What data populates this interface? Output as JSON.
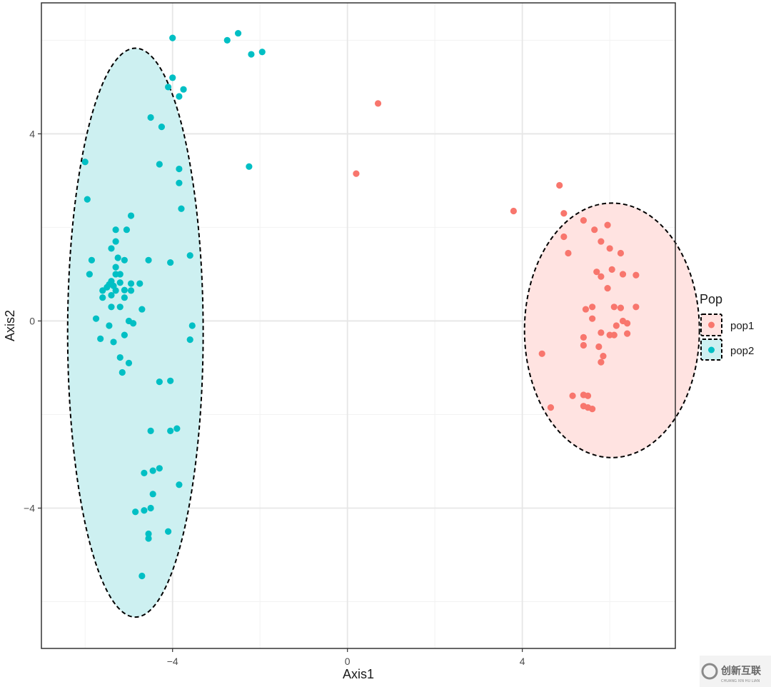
{
  "chart_data": {
    "type": "scatter",
    "xlabel": "Axis1",
    "ylabel": "Axis2",
    "xlim": [
      -7.0,
      7.5
    ],
    "ylim": [
      -7.0,
      6.8
    ],
    "x_ticks": [
      -4,
      0,
      4
    ],
    "y_ticks": [
      -4,
      0,
      4
    ],
    "x_tick_labels": [
      "−4",
      "0",
      "4"
    ],
    "y_tick_labels": [
      "−4",
      "0",
      "4"
    ],
    "grid": true,
    "legend": {
      "title": "Pop",
      "position": "right",
      "entries": [
        "pop1",
        "pop2"
      ]
    },
    "series": [
      {
        "name": "pop1",
        "color": "#F8766D",
        "fill": "#FFE3E1",
        "ellipse": {
          "cx": 6.05,
          "cy": -0.2,
          "rx": 2.0,
          "ry": 2.72
        },
        "points": [
          [
            0.7,
            4.65
          ],
          [
            0.2,
            3.15
          ],
          [
            3.8,
            2.35
          ],
          [
            4.85,
            2.9
          ],
          [
            4.95,
            2.3
          ],
          [
            5.4,
            2.15
          ],
          [
            5.65,
            1.95
          ],
          [
            5.95,
            2.05
          ],
          [
            4.95,
            1.8
          ],
          [
            5.05,
            1.45
          ],
          [
            5.8,
            1.7
          ],
          [
            6.0,
            1.55
          ],
          [
            6.25,
            1.45
          ],
          [
            6.05,
            1.1
          ],
          [
            5.7,
            1.05
          ],
          [
            5.8,
            0.95
          ],
          [
            6.3,
            1.0
          ],
          [
            6.6,
            0.98
          ],
          [
            5.95,
            0.7
          ],
          [
            5.45,
            0.25
          ],
          [
            5.6,
            0.3
          ],
          [
            6.1,
            0.3
          ],
          [
            6.25,
            0.28
          ],
          [
            6.6,
            0.3
          ],
          [
            5.6,
            0.05
          ],
          [
            6.3,
            0.0
          ],
          [
            6.4,
            -0.05
          ],
          [
            6.15,
            -0.1
          ],
          [
            5.8,
            -0.25
          ],
          [
            6.0,
            -0.3
          ],
          [
            6.1,
            -0.3
          ],
          [
            6.4,
            -0.27
          ],
          [
            5.4,
            -0.35
          ],
          [
            5.4,
            -0.52
          ],
          [
            5.75,
            -0.55
          ],
          [
            4.45,
            -0.7
          ],
          [
            5.85,
            -0.75
          ],
          [
            5.8,
            -0.88
          ],
          [
            5.15,
            -1.6
          ],
          [
            5.4,
            -1.58
          ],
          [
            5.5,
            -1.6
          ],
          [
            4.65,
            -1.85
          ],
          [
            5.4,
            -1.82
          ],
          [
            5.5,
            -1.85
          ],
          [
            5.6,
            -1.88
          ]
        ]
      },
      {
        "name": "pop2",
        "color": "#00BFC4",
        "fill": "#CDF0F1",
        "ellipse": {
          "cx": -4.85,
          "cy": -0.25,
          "rx": 1.55,
          "ry": 6.08
        },
        "points": [
          [
            -4.0,
            6.05
          ],
          [
            -2.5,
            6.15
          ],
          [
            -2.75,
            6.0
          ],
          [
            -2.2,
            5.7
          ],
          [
            -1.95,
            5.75
          ],
          [
            -4.0,
            5.2
          ],
          [
            -4.1,
            5.0
          ],
          [
            -3.75,
            4.95
          ],
          [
            -3.85,
            4.8
          ],
          [
            -4.5,
            4.35
          ],
          [
            -4.25,
            4.15
          ],
          [
            -2.25,
            3.3
          ],
          [
            -6.0,
            3.4
          ],
          [
            -4.3,
            3.35
          ],
          [
            -3.85,
            3.25
          ],
          [
            -3.85,
            2.95
          ],
          [
            -5.95,
            2.6
          ],
          [
            -3.8,
            2.4
          ],
          [
            -4.95,
            2.25
          ],
          [
            -5.05,
            1.95
          ],
          [
            -5.3,
            1.95
          ],
          [
            -5.3,
            1.7
          ],
          [
            -5.4,
            1.55
          ],
          [
            -5.85,
            1.3
          ],
          [
            -5.25,
            1.35
          ],
          [
            -5.1,
            1.3
          ],
          [
            -3.6,
            1.4
          ],
          [
            -4.55,
            1.3
          ],
          [
            -4.05,
            1.25
          ],
          [
            -5.3,
            1.15
          ],
          [
            -5.3,
            1.0
          ],
          [
            -5.2,
            1.0
          ],
          [
            -5.9,
            1.0
          ],
          [
            -5.4,
            0.85
          ],
          [
            -5.2,
            0.82
          ],
          [
            -4.95,
            0.8
          ],
          [
            -4.75,
            0.8
          ],
          [
            -5.45,
            0.78
          ],
          [
            -5.5,
            0.72
          ],
          [
            -5.35,
            0.75
          ],
          [
            -5.6,
            0.65
          ],
          [
            -5.3,
            0.65
          ],
          [
            -5.1,
            0.66
          ],
          [
            -4.95,
            0.65
          ],
          [
            -5.4,
            0.55
          ],
          [
            -5.6,
            0.5
          ],
          [
            -5.1,
            0.5
          ],
          [
            -5.4,
            0.3
          ],
          [
            -5.2,
            0.3
          ],
          [
            -4.7,
            0.25
          ],
          [
            -5.75,
            0.05
          ],
          [
            -5.0,
            0.0
          ],
          [
            -4.9,
            -0.05
          ],
          [
            -5.45,
            -0.1
          ],
          [
            -3.55,
            -0.1
          ],
          [
            -5.1,
            -0.3
          ],
          [
            -5.65,
            -0.38
          ],
          [
            -3.6,
            -0.4
          ],
          [
            -5.35,
            -0.45
          ],
          [
            -5.2,
            -0.78
          ],
          [
            -5.0,
            -0.9
          ],
          [
            -5.15,
            -1.1
          ],
          [
            -4.3,
            -1.3
          ],
          [
            -4.05,
            -1.28
          ],
          [
            -4.5,
            -2.35
          ],
          [
            -4.05,
            -2.35
          ],
          [
            -3.9,
            -2.3
          ],
          [
            -4.3,
            -3.15
          ],
          [
            -4.65,
            -3.25
          ],
          [
            -4.45,
            -3.2
          ],
          [
            -3.85,
            -3.5
          ],
          [
            -4.45,
            -3.7
          ],
          [
            -4.5,
            -4.0
          ],
          [
            -4.85,
            -4.08
          ],
          [
            -4.65,
            -4.05
          ],
          [
            -4.1,
            -4.5
          ],
          [
            -4.55,
            -4.55
          ],
          [
            -4.55,
            -4.65
          ],
          [
            -4.7,
            -5.45
          ]
        ]
      }
    ]
  },
  "watermark": {
    "text": "创新互联",
    "subtext": "CHUANG XIN HU LIAN"
  }
}
